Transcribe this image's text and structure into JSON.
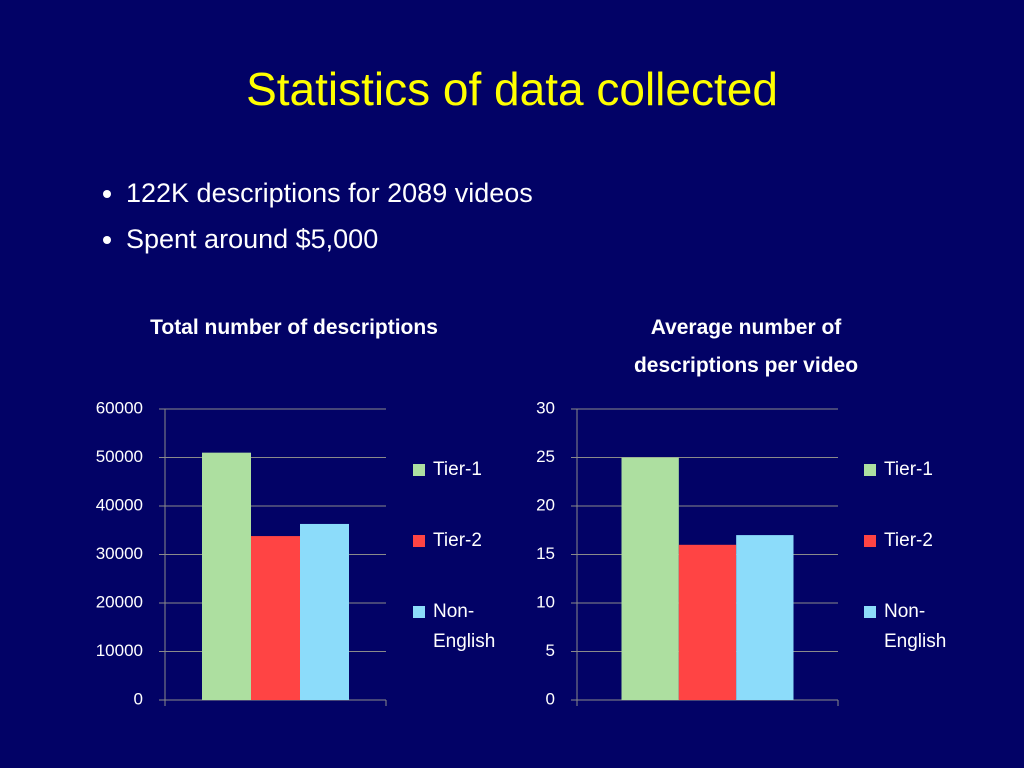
{
  "title": "Statistics of data collected",
  "bullets": [
    "122K descriptions for 2089 videos",
    "Spent around $5,000"
  ],
  "chart_data": [
    {
      "type": "bar",
      "title": "Total number of descriptions",
      "categories": [
        null
      ],
      "series": [
        {
          "name": "Tier-1",
          "color": "#addfa0",
          "values": [
            51000
          ]
        },
        {
          "name": "Tier-2",
          "color": "#ff4444",
          "values": [
            33800
          ]
        },
        {
          "name": "Non-English",
          "color": "#8cdcfa",
          "values": [
            36300
          ]
        }
      ],
      "ylim": [
        0,
        60000
      ],
      "yticks": [
        0,
        10000,
        20000,
        30000,
        40000,
        50000,
        60000
      ],
      "grid": true,
      "legend": "right"
    },
    {
      "type": "bar",
      "title": "Average number of descriptions per video",
      "categories": [
        null
      ],
      "series": [
        {
          "name": "Tier-1",
          "color": "#addfa0",
          "values": [
            25
          ]
        },
        {
          "name": "Tier-2",
          "color": "#ff4444",
          "values": [
            16
          ]
        },
        {
          "name": "Non-English",
          "color": "#8cdcfa",
          "values": [
            17
          ]
        }
      ],
      "ylim": [
        0,
        30
      ],
      "yticks": [
        0,
        5,
        10,
        15,
        20,
        25,
        30
      ],
      "grid": true,
      "legend": "right"
    }
  ]
}
